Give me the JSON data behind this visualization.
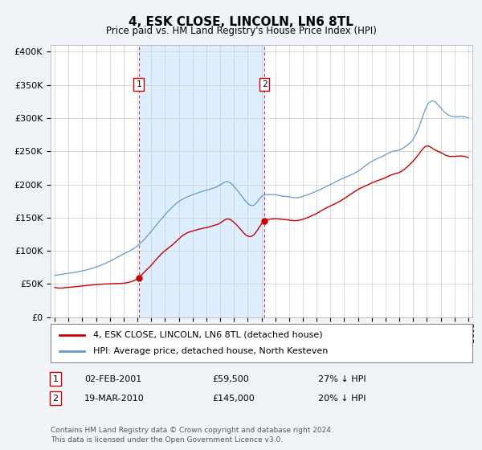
{
  "title": "4, ESK CLOSE, LINCOLN, LN6 8TL",
  "subtitle": "Price paid vs. HM Land Registry's House Price Index (HPI)",
  "legend_line1": "4, ESK CLOSE, LINCOLN, LN6 8TL (detached house)",
  "legend_line2": "HPI: Average price, detached house, North Kesteven",
  "annotation1_label": "1",
  "annotation1_date": "02-FEB-2001",
  "annotation1_price": "£59,500",
  "annotation1_hpi": "27% ↓ HPI",
  "annotation2_label": "2",
  "annotation2_date": "19-MAR-2010",
  "annotation2_price": "£145,000",
  "annotation2_hpi": "20% ↓ HPI",
  "footer": "Contains HM Land Registry data © Crown copyright and database right 2024.\nThis data is licensed under the Open Government Licence v3.0.",
  "red_line_color": "#cc0000",
  "blue_line_color": "#6699cc",
  "shade_color": "#ddeeff",
  "background_color": "#f0f4f8",
  "plot_bg_color": "#ffffff",
  "vline_color": "#cc0000",
  "sale1_year": 2001.09,
  "sale1_price": 59500,
  "sale2_year": 2010.21,
  "sale2_price": 145000,
  "ylim_min": 0,
  "ylim_max": 410000,
  "xlim_min": 1994.7,
  "xlim_max": 2025.3
}
